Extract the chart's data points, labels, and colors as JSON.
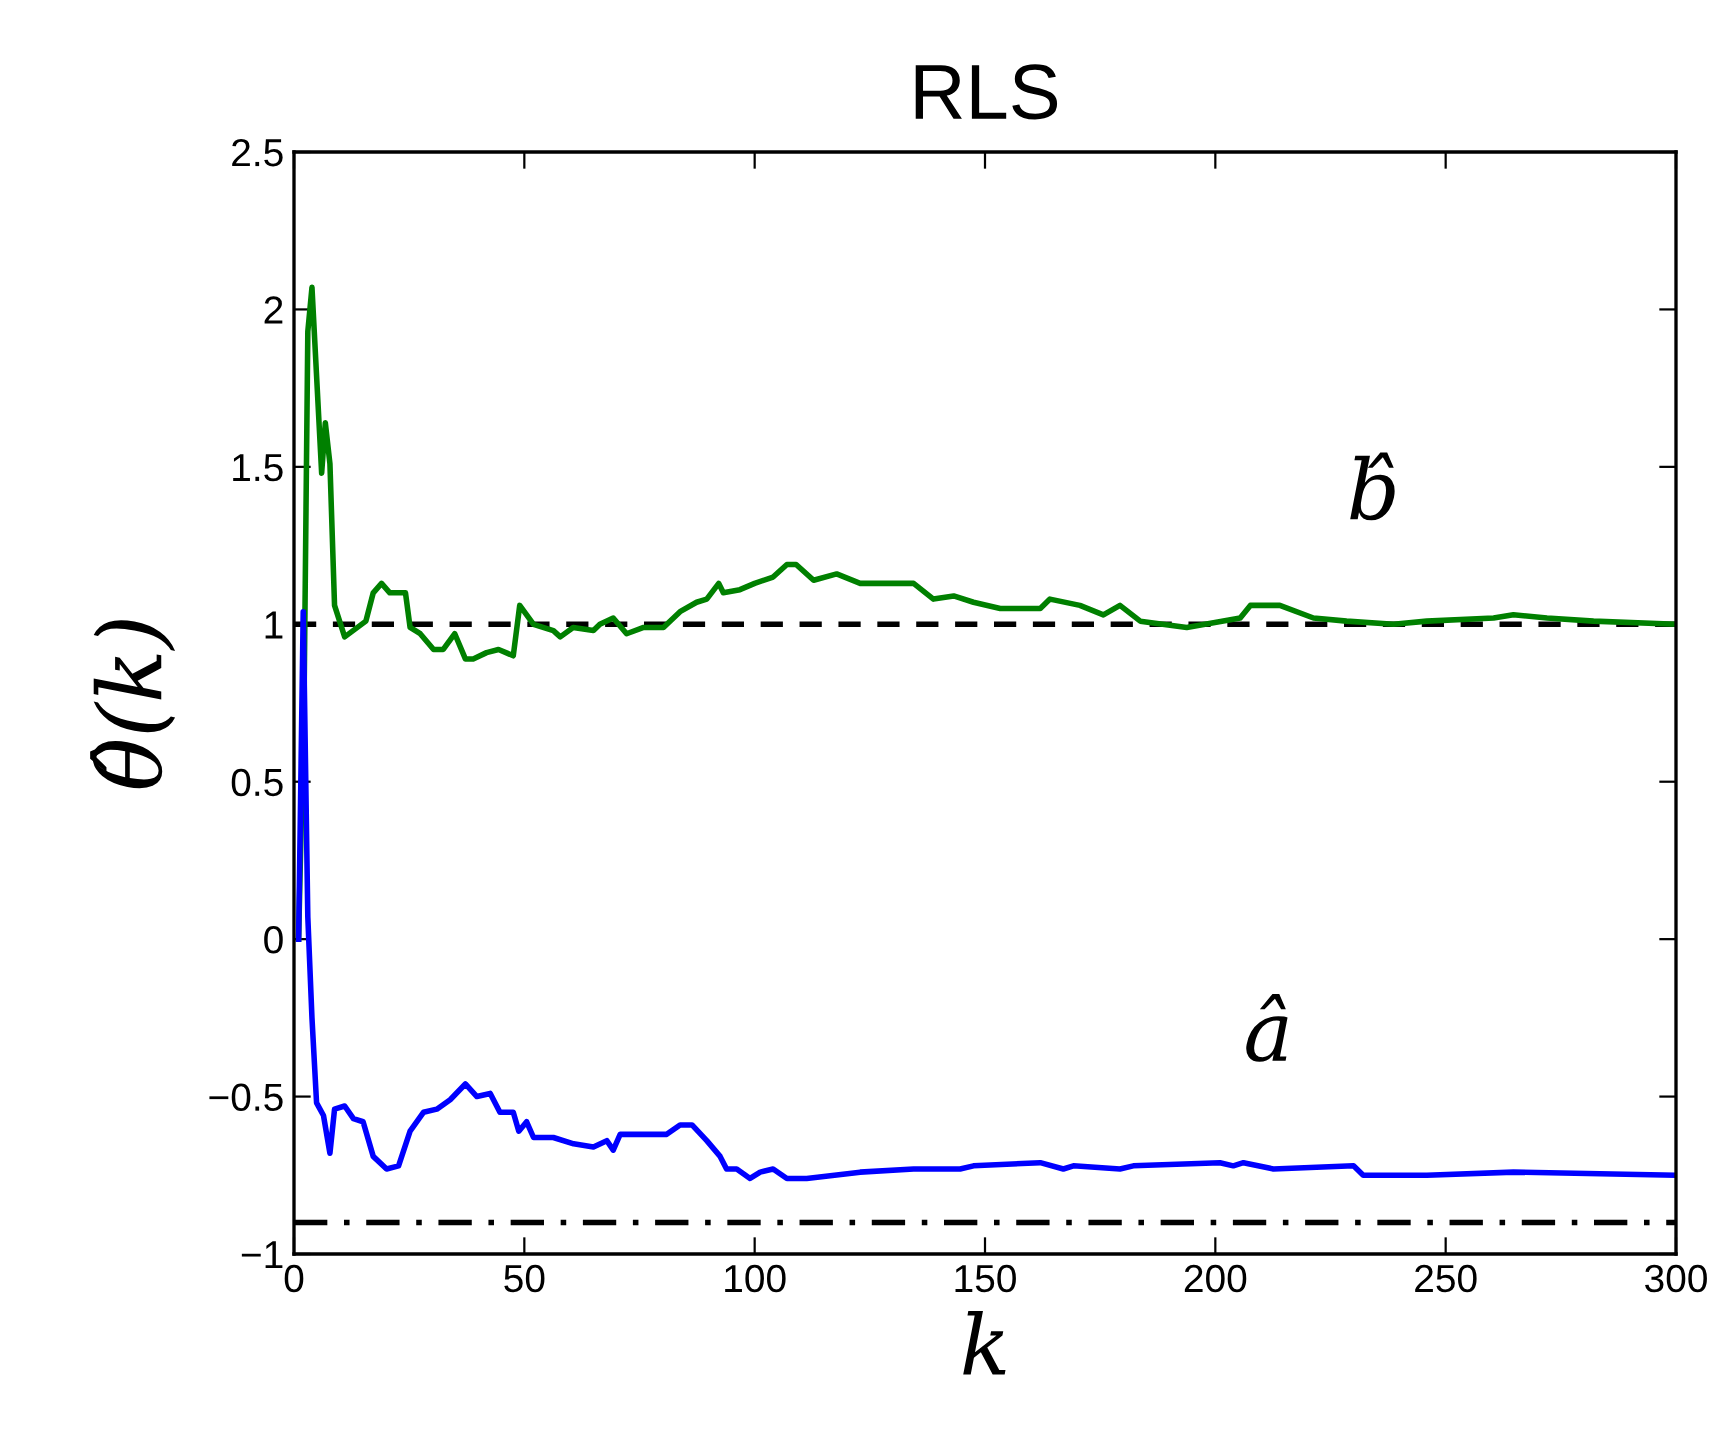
{
  "chart_data": {
    "type": "line",
    "title": "RLS",
    "xlabel": "k",
    "ylabel": "θ̂(k)",
    "xlim": [
      0,
      300
    ],
    "xticks": [
      0,
      50,
      100,
      150,
      200,
      250,
      300
    ],
    "ylim": [
      -1,
      2.5
    ],
    "yticks": [
      {
        "value": -1,
        "label": "−1"
      },
      {
        "value": -0.5,
        "label": "−0.5"
      },
      0,
      0.5,
      1,
      1.5,
      2,
      2.5
    ],
    "grid": false,
    "legend": false,
    "marker": "none",
    "line_style": "solid",
    "series": [
      {
        "name": "b̂",
        "color": "#008000",
        "x": [
          1,
          2.2,
          3,
          3.9,
          6,
          6.8,
          7.8,
          8.8,
          11,
          15.6,
          17.2,
          19,
          20.8,
          24.2,
          25.2,
          27.4,
          30.3,
          32.4,
          34.9,
          37.2,
          38.9,
          41.8,
          44.4,
          47.6,
          49,
          52,
          56.3,
          57.8,
          60.6,
          65,
          66.4,
          69.3,
          72.2,
          75.9,
          80.2,
          83.8,
          87.4,
          89.6,
          92.2,
          93.2,
          96.8,
          100,
          104,
          107,
          109,
          112.8,
          117.8,
          122.9,
          134.5,
          138.8,
          143.2,
          147.5,
          153.3,
          162,
          164.1,
          170.6,
          175.7,
          179.3,
          183.7,
          193.8,
          205.4,
          207.6,
          214,
          221.3,
          228.5,
          238.7,
          245.9,
          260.4,
          264.7,
          272,
          282.1,
          300
        ],
        "values": [
          0,
          0.78,
          1.93,
          2.07,
          1.48,
          1.64,
          1.51,
          1.06,
          0.96,
          1.01,
          1.1,
          1.13,
          1.1,
          1.1,
          0.99,
          0.97,
          0.92,
          0.92,
          0.97,
          0.89,
          0.89,
          0.91,
          0.92,
          0.9,
          1.06,
          1.0,
          0.98,
          0.96,
          0.99,
          0.98,
          1.0,
          1.02,
          0.97,
          0.99,
          0.99,
          1.04,
          1.07,
          1.08,
          1.13,
          1.1,
          1.11,
          1.13,
          1.15,
          1.19,
          1.19,
          1.14,
          1.16,
          1.13,
          1.13,
          1.08,
          1.09,
          1.07,
          1.05,
          1.05,
          1.08,
          1.06,
          1.03,
          1.06,
          1.01,
          0.99,
          1.02,
          1.06,
          1.06,
          1.02,
          1.01,
          1.0,
          1.01,
          1.02,
          1.03,
          1.02,
          1.01,
          1.0
        ]
      },
      {
        "name": "â",
        "color": "#0000ff",
        "x": [
          1,
          2,
          3,
          3.9,
          4.9,
          6.4,
          7.8,
          8.8,
          11,
          12.9,
          15,
          17.2,
          20.1,
          22.7,
          25.2,
          28.1,
          31,
          33.9,
          37.2,
          39.7,
          42.6,
          44.7,
          47.6,
          48.8,
          50.5,
          52,
          56.3,
          60.7,
          65,
          67.9,
          69.3,
          70.8,
          75.1,
          80.9,
          83.8,
          86.4,
          89.6,
          92.5,
          93.9,
          96.1,
          99,
          101.2,
          104,
          107,
          111.3,
          122.9,
          134.5,
          144.6,
          147.5,
          162,
          167,
          169.2,
          179.3,
          182.2,
          201,
          203.9,
          206.1,
          212.6,
          230,
          232.1,
          245.9,
          264.7,
          300
        ],
        "values": [
          0,
          1.04,
          0.07,
          -0.25,
          -0.52,
          -0.56,
          -0.68,
          -0.54,
          -0.53,
          -0.57,
          -0.58,
          -0.69,
          -0.73,
          -0.72,
          -0.61,
          -0.55,
          -0.54,
          -0.51,
          -0.46,
          -0.5,
          -0.49,
          -0.55,
          -0.55,
          -0.61,
          -0.58,
          -0.63,
          -0.63,
          -0.65,
          -0.66,
          -0.64,
          -0.67,
          -0.62,
          -0.62,
          -0.62,
          -0.59,
          -0.59,
          -0.64,
          -0.69,
          -0.73,
          -0.73,
          -0.76,
          -0.74,
          -0.73,
          -0.76,
          -0.76,
          -0.74,
          -0.73,
          -0.73,
          -0.72,
          -0.71,
          -0.73,
          -0.72,
          -0.73,
          -0.72,
          -0.71,
          -0.72,
          -0.71,
          -0.73,
          -0.72,
          -0.75,
          -0.75,
          -0.74,
          -0.75
        ]
      }
    ],
    "ref_lines": [
      {
        "axis": "y",
        "value": 1,
        "color": "#000000",
        "line_style": "dashed"
      },
      {
        "axis": "y",
        "value": -0.9,
        "color": "#000000",
        "line_style": "dashdot"
      }
    ]
  }
}
